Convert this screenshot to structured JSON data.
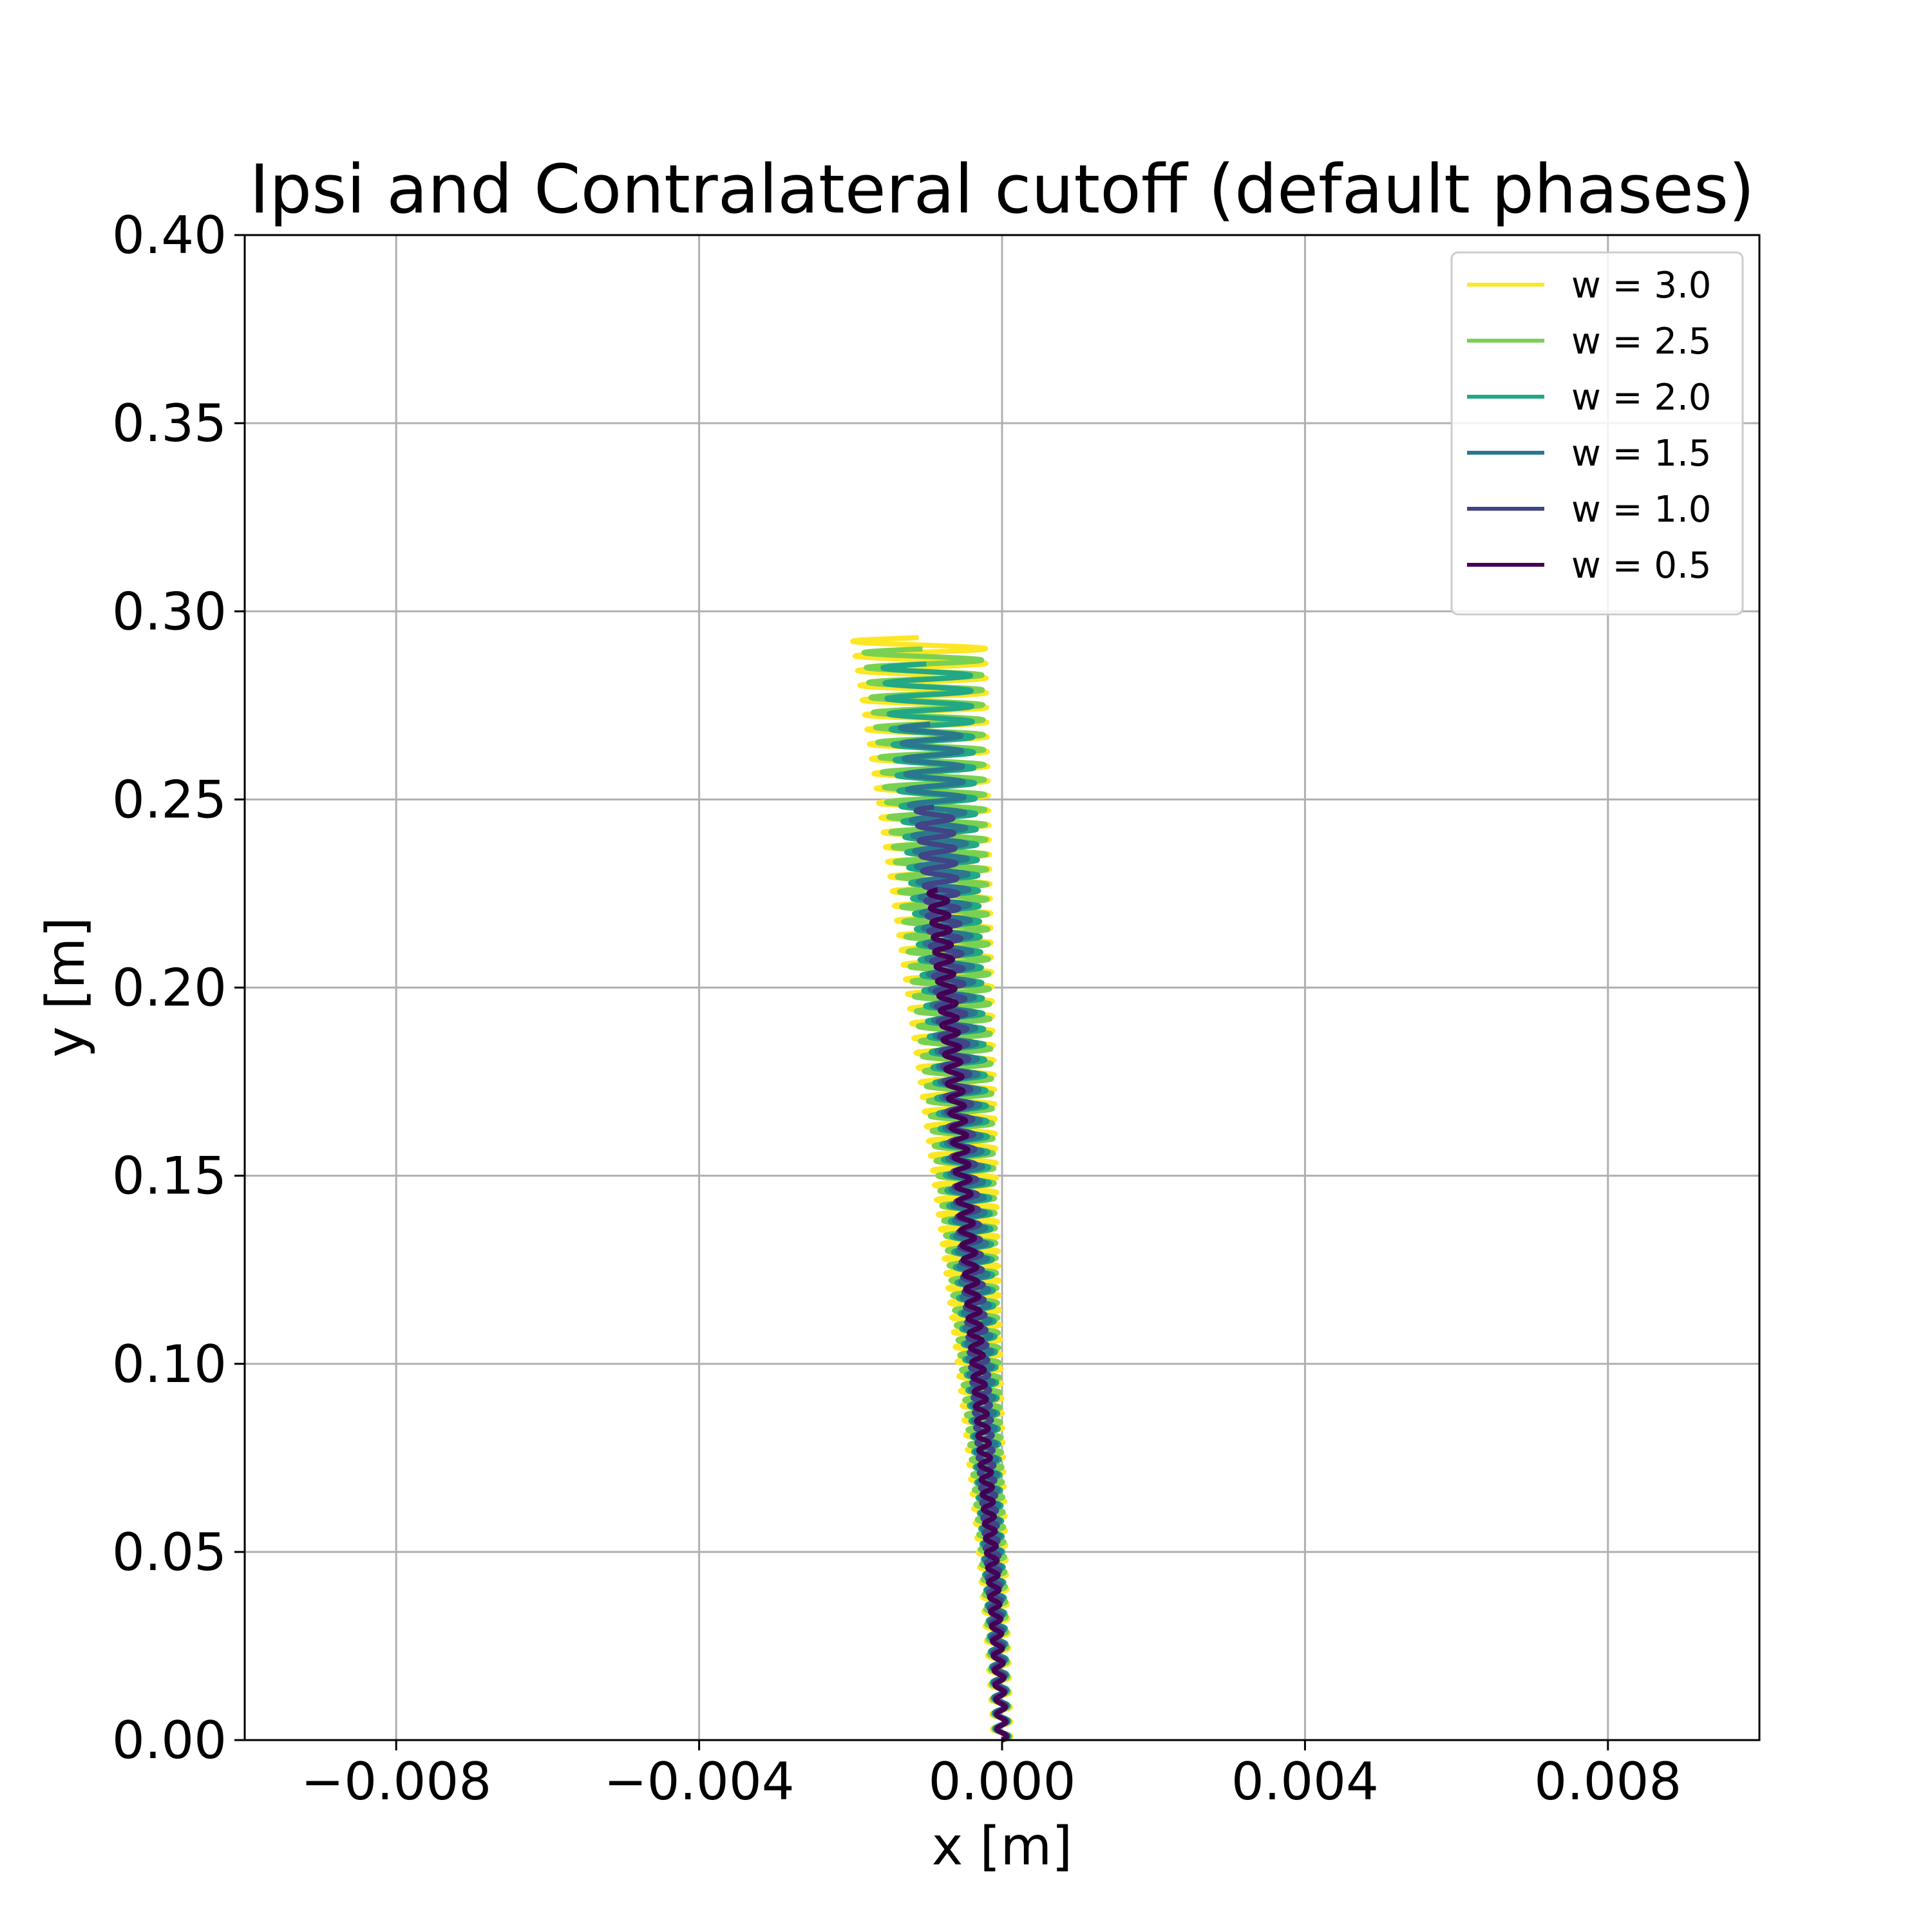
{
  "chart_data": {
    "type": "line",
    "title": "Ipsi and Contralateral cutoff (default phases)",
    "xlabel": "x [m]",
    "ylabel": "y [m]",
    "xlim": [
      -0.01,
      0.01
    ],
    "ylim": [
      0.0,
      0.4
    ],
    "xticks": [
      -0.008,
      -0.004,
      0.0,
      0.004,
      0.008
    ],
    "xtick_labels": [
      "−0.008",
      "−0.004",
      "0.000",
      "0.004",
      "0.008"
    ],
    "yticks": [
      0.0,
      0.05,
      0.1,
      0.15,
      0.2,
      0.25,
      0.3,
      0.35,
      0.4
    ],
    "ytick_labels": [
      "0.00",
      "0.05",
      "0.10",
      "0.15",
      "0.20",
      "0.25",
      "0.30",
      "0.35",
      "0.40"
    ],
    "grid": true,
    "legend_position": "top-right",
    "series": [
      {
        "name": "w = 3.0",
        "color": "#fde725",
        "y_end": 0.293,
        "x_drift_end": -0.0011,
        "amplitude_base": 0.00012,
        "amplitude_end": 0.00088,
        "n_cycles": 75
      },
      {
        "name": "w = 2.5",
        "color": "#7ad151",
        "y_end": 0.29,
        "x_drift_end": -0.00105,
        "amplitude_base": 0.0001,
        "amplitude_end": 0.00078,
        "n_cycles": 73
      },
      {
        "name": "w = 2.0",
        "color": "#22a884",
        "y_end": 0.286,
        "x_drift_end": -0.001,
        "amplitude_base": 9e-05,
        "amplitude_end": 0.00058,
        "n_cycles": 70
      },
      {
        "name": "w = 1.5",
        "color": "#2a788e",
        "y_end": 0.27,
        "x_drift_end": -0.00095,
        "amplitude_base": 8e-05,
        "amplitude_end": 0.0004,
        "n_cycles": 66
      },
      {
        "name": "w = 1.0",
        "color": "#414487",
        "y_end": 0.248,
        "x_drift_end": -0.0009,
        "amplitude_base": 7e-05,
        "amplitude_end": 0.00024,
        "n_cycles": 62
      },
      {
        "name": "w = 0.5",
        "color": "#440154",
        "y_end": 0.226,
        "x_drift_end": -0.00085,
        "amplitude_base": 6e-05,
        "amplitude_end": 0.00012,
        "n_cycles": 58
      }
    ]
  }
}
